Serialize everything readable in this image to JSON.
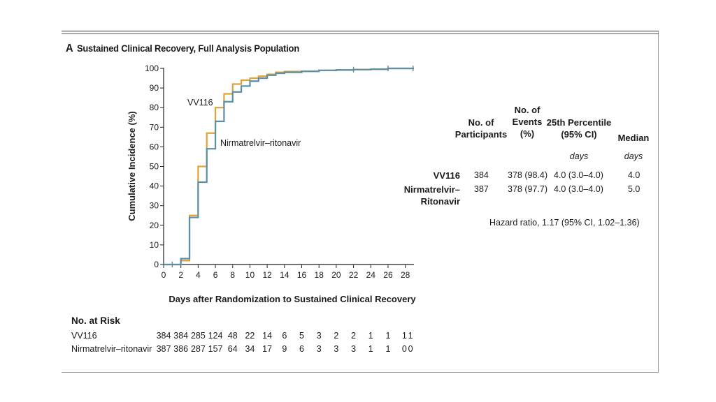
{
  "panel": {
    "letter": "A",
    "title": "Sustained Clinical Recovery, Full Analysis Population"
  },
  "chart_data": {
    "type": "line",
    "step": true,
    "xlabel": "Days after Randomization to Sustained Clinical Recovery",
    "ylabel": "Cumulative Incidence (%)",
    "xlim": [
      0,
      29
    ],
    "ylim": [
      0,
      100
    ],
    "xticks": [
      0,
      2,
      4,
      6,
      8,
      10,
      12,
      14,
      16,
      18,
      20,
      22,
      24,
      26,
      28
    ],
    "yticks": [
      0,
      10,
      20,
      30,
      40,
      50,
      60,
      70,
      80,
      90,
      100
    ],
    "grid": false,
    "series": [
      {
        "name": "VV116",
        "color": "#e0a234",
        "x": [
          0,
          1,
          2,
          3,
          4,
          5,
          6,
          7,
          8,
          9,
          10,
          11,
          12,
          13,
          14,
          16,
          18,
          20,
          22,
          24,
          26,
          29
        ],
        "y": [
          0,
          0,
          2,
          25,
          50,
          67,
          80,
          87,
          92,
          94,
          95,
          96,
          97,
          98,
          98.4,
          98.6,
          99,
          99.2,
          99.4,
          99.6,
          100,
          100
        ]
      },
      {
        "name": "Nirmatrelvir–ritonavir",
        "color": "#5a8fa8",
        "x": [
          0,
          1,
          2,
          3,
          4,
          5,
          6,
          7,
          8,
          9,
          10,
          11,
          12,
          13,
          14,
          16,
          18,
          20,
          22,
          24,
          26,
          29
        ],
        "y": [
          0,
          0,
          3,
          24,
          42,
          59,
          73,
          83,
          88,
          91,
          93.5,
          95,
          96.5,
          97.5,
          98,
          98.5,
          99,
          99.2,
          99.4,
          99.6,
          100,
          100
        ]
      }
    ],
    "curve_labels": [
      "VV116",
      "Nirmatrelvir–ritonavir"
    ]
  },
  "risk": {
    "title": "No. at Risk",
    "rows": [
      {
        "name": "VV116",
        "values": [
          "384",
          "384",
          "285",
          "124",
          "48",
          "22",
          "14",
          "6",
          "5",
          "3",
          "2",
          "2",
          "1",
          "1",
          "1",
          "1"
        ]
      },
      {
        "name": "Nirmatrelvir–ritonavir",
        "values": [
          "387",
          "386",
          "287",
          "157",
          "64",
          "34",
          "17",
          "9",
          "6",
          "3",
          "3",
          "3",
          "1",
          "1",
          "0",
          "0"
        ]
      }
    ]
  },
  "summary": {
    "headers": {
      "participants": [
        "No. of",
        "Participants"
      ],
      "events": [
        "No. of",
        "Events",
        "(%)"
      ],
      "percentile": [
        "25th Percentile",
        "(95% CI)"
      ],
      "median": [
        "Median"
      ]
    },
    "units": {
      "percentile": "days",
      "median": "days"
    },
    "rows": [
      {
        "group": [
          "VV116"
        ],
        "participants": "384",
        "events": "378 (98.4)",
        "percentile": "4.0 (3.0–4.0)",
        "median": "4.0"
      },
      {
        "group": [
          "Nirmatrelvir–",
          "Ritonavir"
        ],
        "participants": "387",
        "events": "378 (97.7)",
        "percentile": "4.0 (3.0–4.0)",
        "median": "5.0"
      }
    ],
    "hazard_ratio": "Hazard ratio, 1.17 (95% CI, 1.02–1.36)"
  }
}
